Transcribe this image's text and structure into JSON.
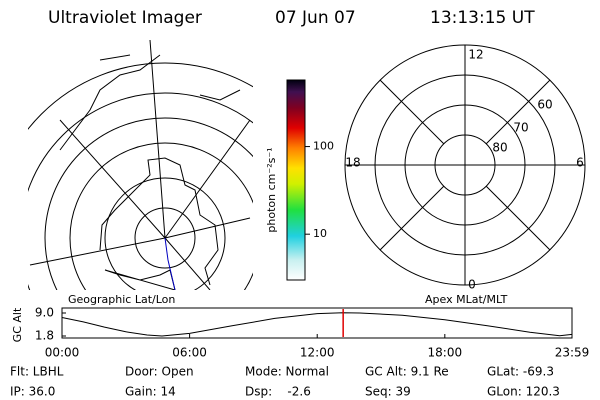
{
  "header": {
    "instrument": "Ultraviolet Imager",
    "date": "07 Jun 07",
    "time": "13:13:15 UT"
  },
  "colorbar": {
    "label": "photon cm⁻²s⁻¹",
    "log": true,
    "clim": [
      3,
      575
    ],
    "ticks": [
      10,
      100
    ]
  },
  "panels": {
    "left_title": "Geographic Lat/Lon",
    "right_title": "Apex MLat/MLT"
  },
  "polar": {
    "mlt_labels": {
      "top": "12",
      "right": "6",
      "bottom": "0",
      "left": "18"
    },
    "lat_labels": [
      "60",
      "70",
      "80"
    ]
  },
  "altitude_plot": {
    "ylabel": "GC Alt",
    "ylim": [
      1.8,
      9.0
    ],
    "yticks": [
      {
        "value": 9.0,
        "label": "9.0"
      },
      {
        "value": 1.8,
        "label": "1.8"
      }
    ],
    "xlim": [
      0,
      23.98
    ],
    "xticks": [
      {
        "value": 0,
        "label": "00:00"
      },
      {
        "value": 6,
        "label": "06:00"
      },
      {
        "value": 12,
        "label": "12:00"
      },
      {
        "value": 18,
        "label": "18:00"
      },
      {
        "value": 23.98,
        "label": "23:59"
      }
    ],
    "hours": [
      0,
      1,
      2,
      3,
      4,
      4.7,
      6,
      8,
      10,
      12,
      13.2,
      14,
      16,
      18,
      20,
      22,
      23.4,
      23.98
    ],
    "altitude": [
      7.6,
      6.2,
      4.6,
      3.1,
      2.1,
      1.8,
      2.6,
      5.0,
      7.3,
      8.8,
      9.1,
      9.0,
      8.3,
      6.9,
      5.0,
      3.0,
      1.9,
      2.3
    ],
    "current_hour": 13.22,
    "current_color": "#e00000"
  },
  "footer": {
    "rows": [
      [
        "Flt: LBHL",
        "Door: Open",
        "Mode: Normal",
        "GC Alt: 9.1 Re",
        "GLat: -69.3"
      ],
      [
        "IP: 36.0",
        "Gain: 14",
        "Dsp:    -2.6",
        "Seq: 39",
        "GLon: 120.3"
      ]
    ]
  }
}
